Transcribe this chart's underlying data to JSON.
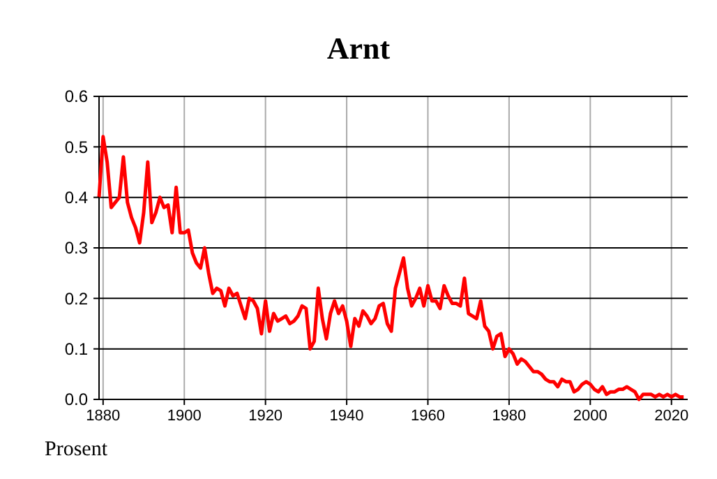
{
  "chart_data": {
    "type": "line",
    "title": "Arnt",
    "ylabel": "Prosent",
    "x": [
      1879,
      1880,
      1881,
      1882,
      1883,
      1884,
      1885,
      1886,
      1887,
      1888,
      1889,
      1890,
      1891,
      1892,
      1893,
      1894,
      1895,
      1896,
      1897,
      1898,
      1899,
      1900,
      1901,
      1902,
      1903,
      1904,
      1905,
      1906,
      1907,
      1908,
      1909,
      1910,
      1911,
      1912,
      1913,
      1914,
      1915,
      1916,
      1917,
      1918,
      1919,
      1920,
      1921,
      1922,
      1923,
      1924,
      1925,
      1926,
      1927,
      1928,
      1929,
      1930,
      1931,
      1932,
      1933,
      1934,
      1935,
      1936,
      1937,
      1938,
      1939,
      1940,
      1941,
      1942,
      1943,
      1944,
      1945,
      1946,
      1947,
      1948,
      1949,
      1950,
      1951,
      1952,
      1953,
      1954,
      1955,
      1956,
      1957,
      1958,
      1959,
      1960,
      1961,
      1962,
      1963,
      1964,
      1965,
      1966,
      1967,
      1968,
      1969,
      1970,
      1971,
      1972,
      1973,
      1974,
      1975,
      1976,
      1977,
      1978,
      1979,
      1980,
      1981,
      1982,
      1983,
      1984,
      1985,
      1986,
      1987,
      1988,
      1989,
      1990,
      1991,
      1992,
      1993,
      1994,
      1995,
      1996,
      1997,
      1998,
      1999,
      2000,
      2001,
      2002,
      2003,
      2004,
      2005,
      2006,
      2007,
      2008,
      2009,
      2010,
      2011,
      2012,
      2013,
      2014,
      2015,
      2016,
      2017,
      2018,
      2019,
      2020,
      2021,
      2022,
      2023
    ],
    "series": [
      {
        "color": "#ff0000",
        "values": [
          0.4,
          0.52,
          0.47,
          0.38,
          0.39,
          0.4,
          0.48,
          0.39,
          0.36,
          0.34,
          0.31,
          0.37,
          0.47,
          0.35,
          0.37,
          0.4,
          0.38,
          0.385,
          0.33,
          0.42,
          0.33,
          0.33,
          0.335,
          0.29,
          0.27,
          0.26,
          0.3,
          0.25,
          0.21,
          0.22,
          0.215,
          0.185,
          0.22,
          0.205,
          0.21,
          0.185,
          0.16,
          0.2,
          0.195,
          0.18,
          0.13,
          0.195,
          0.135,
          0.17,
          0.155,
          0.16,
          0.165,
          0.15,
          0.155,
          0.165,
          0.185,
          0.18,
          0.1,
          0.115,
          0.22,
          0.16,
          0.12,
          0.17,
          0.195,
          0.17,
          0.185,
          0.155,
          0.105,
          0.16,
          0.145,
          0.175,
          0.165,
          0.15,
          0.16,
          0.185,
          0.19,
          0.15,
          0.135,
          0.22,
          0.25,
          0.28,
          0.22,
          0.185,
          0.2,
          0.22,
          0.185,
          0.225,
          0.195,
          0.195,
          0.18,
          0.225,
          0.205,
          0.19,
          0.19,
          0.185,
          0.24,
          0.17,
          0.165,
          0.16,
          0.195,
          0.145,
          0.135,
          0.1,
          0.125,
          0.13,
          0.085,
          0.1,
          0.09,
          0.07,
          0.08,
          0.075,
          0.065,
          0.055,
          0.055,
          0.05,
          0.04,
          0.035,
          0.035,
          0.025,
          0.04,
          0.035,
          0.035,
          0.015,
          0.02,
          0.03,
          0.035,
          0.03,
          0.02,
          0.015,
          0.025,
          0.01,
          0.015,
          0.015,
          0.02,
          0.02,
          0.025,
          0.02,
          0.015,
          0.0,
          0.01,
          0.01,
          0.01,
          0.005,
          0.01,
          0.005,
          0.01,
          0.005,
          0.01,
          0.005,
          0.005
        ]
      }
    ],
    "xlim": [
      1879,
      2024
    ],
    "xticks": [
      1880,
      1900,
      1920,
      1940,
      1960,
      1980,
      2000,
      2020
    ],
    "ylim": [
      0,
      0.6
    ],
    "yticks": [
      {
        "value": 0,
        "label": "0.0"
      },
      0.1,
      0.2,
      0.3,
      0.4,
      0.5,
      0.6
    ],
    "grid": true,
    "marker": "none",
    "line_style": "solid"
  }
}
